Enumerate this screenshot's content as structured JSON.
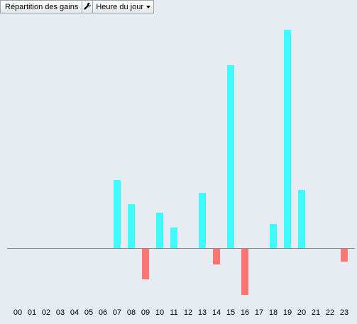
{
  "toolbar": {
    "title": "Répartition des gains",
    "tool_icon": "wrench-icon",
    "select_value": "Heure du jour",
    "select_icon": "chevron-down-icon"
  },
  "colors": {
    "positive": "#3ffcfc",
    "negative": "#fc7474",
    "baseline": "#8a8a8a",
    "background": "#e6ecf1"
  },
  "chart_data": {
    "type": "bar",
    "title": "",
    "xlabel": "",
    "ylabel": "",
    "categories": [
      "00",
      "01",
      "02",
      "03",
      "04",
      "05",
      "06",
      "07",
      "08",
      "09",
      "10",
      "11",
      "12",
      "13",
      "14",
      "15",
      "16",
      "17",
      "18",
      "19",
      "20",
      "21",
      "22",
      "23"
    ],
    "values": [
      0,
      0,
      0,
      0,
      0,
      0,
      0,
      96,
      62,
      -43,
      50,
      29,
      0,
      78,
      -22,
      258,
      -65,
      0,
      34,
      308,
      82,
      0,
      0,
      -18
    ],
    "ylim": [
      -100,
      320
    ],
    "grid": false,
    "legend": "none"
  }
}
